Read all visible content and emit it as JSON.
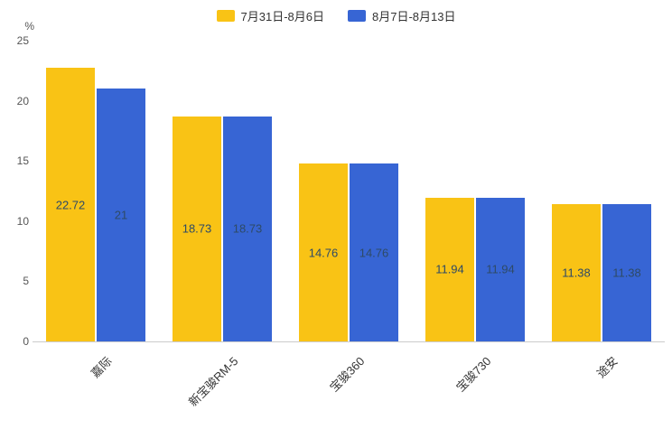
{
  "y_axis": {
    "unit": "%",
    "ticks": [
      0,
      5,
      10,
      15,
      20,
      25
    ]
  },
  "chart_data": {
    "type": "bar",
    "title": "",
    "categories": [
      "嘉际",
      "新宝骏RM-5",
      "宝骏360",
      "宝骏730",
      "途安"
    ],
    "series": [
      {
        "name": "7月31日-8月6日",
        "color": "#f9c315",
        "values": [
          22.72,
          18.73,
          14.76,
          11.94,
          11.38
        ]
      },
      {
        "name": "8月7日-8月13日",
        "color": "#3765d4",
        "values": [
          21,
          18.73,
          14.76,
          11.94,
          11.38
        ]
      }
    ],
    "xlabel": "",
    "ylabel": "%",
    "ylim": [
      0,
      25
    ],
    "grid": false,
    "legend_position": "top",
    "value_labels": "inside"
  },
  "colors": {
    "axis_line": "#cccccc",
    "tick_text": "#555555",
    "bar_label_text": "#2e4a66"
  }
}
